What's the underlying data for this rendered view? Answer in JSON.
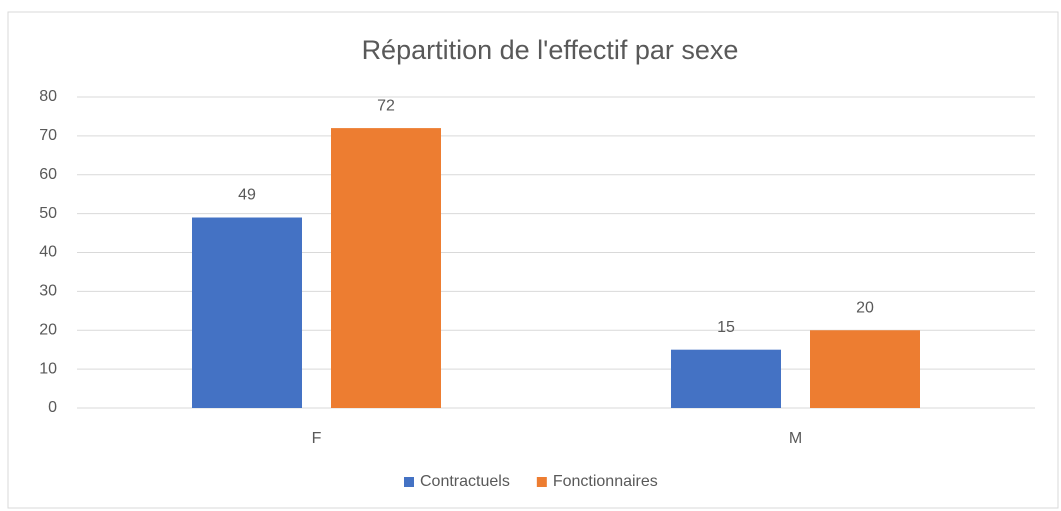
{
  "chart_data": {
    "type": "bar",
    "title": "Répartition de l'effectif par sexe",
    "categories": [
      "F",
      "M"
    ],
    "series": [
      {
        "name": "Contractuels",
        "color": "#4472c4",
        "values": [
          49,
          15
        ]
      },
      {
        "name": "Fonctionnaires",
        "color": "#ed7d31",
        "values": [
          72,
          20
        ]
      }
    ],
    "ylim": [
      0,
      80
    ],
    "yticks": [
      0,
      10,
      20,
      30,
      40,
      50,
      60,
      70,
      80
    ],
    "grid": true,
    "legend": "bottom"
  }
}
